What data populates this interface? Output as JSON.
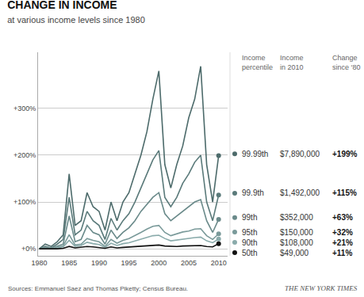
{
  "chart_data": {
    "type": "line",
    "title": "CHANGE IN INCOME",
    "subtitle": "at various income levels since 1980",
    "source": "Sources: Emmanuel Saez and Thomas Piketty; Census Bureau.",
    "source_right": "THE NEW YORK TIMES",
    "annotations": [
      "Income\npercentile",
      "Income\nin 2010",
      "Change\nsince ‘80"
    ],
    "x": [
      1980,
      1981,
      1982,
      1983,
      1984,
      1985,
      1986,
      1987,
      1988,
      1989,
      1990,
      1991,
      1992,
      1993,
      1994,
      1995,
      1996,
      1997,
      1998,
      1999,
      2000,
      2001,
      2002,
      2003,
      2004,
      2005,
      2006,
      2007,
      2008,
      2009,
      2010
    ],
    "series": [
      {
        "name": "99.99th",
        "color": "#4d6b6b",
        "income": "$7,890,000",
        "change": "+199%",
        "values": [
          0,
          10,
          5,
          15,
          30,
          160,
          50,
          60,
          120,
          90,
          80,
          40,
          100,
          60,
          100,
          120,
          160,
          200,
          250,
          320,
          380,
          180,
          130,
          180,
          220,
          280,
          320,
          390,
          180,
          100,
          199
        ]
      },
      {
        "name": "99.9th",
        "color": "#5a7a7a",
        "income": "$1,492,000",
        "change": "+115%",
        "values": [
          0,
          5,
          2,
          10,
          20,
          110,
          30,
          40,
          80,
          60,
          50,
          20,
          65,
          40,
          60,
          75,
          100,
          130,
          160,
          190,
          210,
          110,
          90,
          110,
          140,
          160,
          185,
          200,
          100,
          60,
          115
        ]
      },
      {
        "name": "99th",
        "color": "#6a8a8a",
        "income": "$352,000",
        "change": "+63%",
        "values": [
          0,
          3,
          1,
          5,
          10,
          70,
          15,
          20,
          50,
          35,
          30,
          10,
          40,
          22,
          35,
          45,
          60,
          80,
          95,
          110,
          120,
          75,
          60,
          70,
          80,
          90,
          100,
          105,
          60,
          35,
          63
        ]
      },
      {
        "name": "95th",
        "color": "#7a9a9a",
        "income": "$150,000",
        "change": "+32%",
        "values": [
          0,
          2,
          1,
          3,
          6,
          30,
          8,
          10,
          22,
          18,
          15,
          5,
          20,
          12,
          18,
          22,
          28,
          35,
          42,
          48,
          50,
          35,
          28,
          32,
          36,
          38,
          42,
          43,
          28,
          20,
          32
        ]
      },
      {
        "name": "90th",
        "color": "#8aabab",
        "income": "$108,000",
        "change": "+21%",
        "values": [
          0,
          1,
          0,
          2,
          4,
          18,
          5,
          7,
          14,
          11,
          9,
          3,
          12,
          7,
          11,
          13,
          17,
          21,
          25,
          28,
          29,
          22,
          17,
          19,
          21,
          22,
          24,
          25,
          17,
          13,
          21
        ]
      },
      {
        "name": "50th",
        "color": "#111111",
        "income": "$49,000",
        "change": "+11%",
        "values": [
          0,
          0,
          -1,
          0,
          1,
          5,
          2,
          3,
          5,
          4,
          3,
          1,
          4,
          2,
          3,
          4,
          5,
          6,
          7,
          8,
          8,
          6,
          5,
          5,
          6,
          6,
          7,
          7,
          5,
          4,
          11
        ]
      }
    ],
    "xlim": [
      1979.8,
      2011.5
    ],
    "xticks": [
      1980,
      1985,
      1990,
      1995,
      2000,
      2005,
      2010
    ],
    "ylim": [
      -15,
      420
    ],
    "yticks": [
      {
        "value": 0,
        "label": "+0%"
      },
      {
        "value": 100,
        "label": "+100%"
      },
      {
        "value": 200,
        "label": "+200%"
      },
      {
        "value": 300,
        "label": "+300%"
      }
    ],
    "grid": true
  }
}
